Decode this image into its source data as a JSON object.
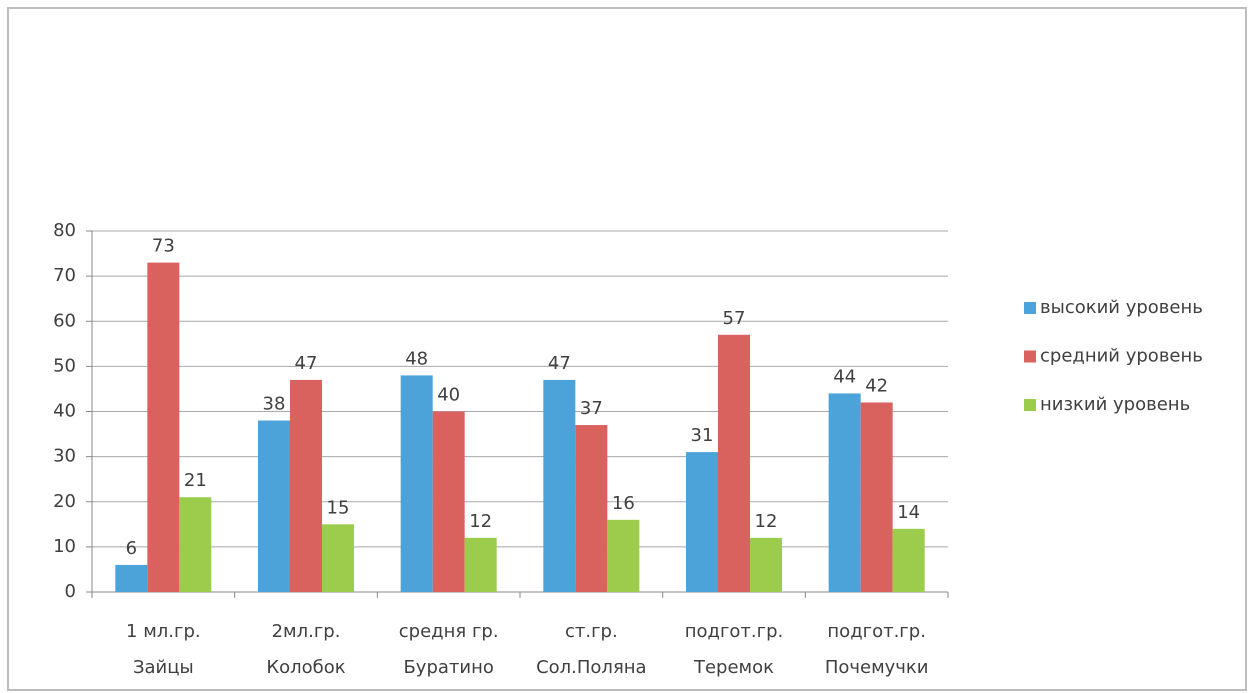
{
  "chart_data": {
    "type": "bar",
    "categories": [
      [
        "1 мл.гр.",
        "Зайцы"
      ],
      [
        "2мл.гр.",
        "Колобок"
      ],
      [
        "средня гр.",
        "Буратино"
      ],
      [
        "ст.гр.",
        "Сол.Поляна"
      ],
      [
        "подгот.гр.",
        "Теремок"
      ],
      [
        "подгот.гр.",
        "Почемучки"
      ]
    ],
    "series": [
      {
        "name": "высокий уровень",
        "color": "#4ba3d9",
        "values": [
          6,
          38,
          48,
          47,
          31,
          44
        ]
      },
      {
        "name": "средний уровень",
        "color": "#d9625f",
        "values": [
          73,
          47,
          40,
          37,
          57,
          42
        ]
      },
      {
        "name": "низкий уровень",
        "color": "#9bcc4b",
        "values": [
          21,
          15,
          12,
          16,
          12,
          14
        ]
      }
    ],
    "ylim": [
      0,
      80
    ],
    "yticks": [
      0,
      10,
      20,
      30,
      40,
      50,
      60,
      70,
      80
    ],
    "grid": true,
    "legend": "right"
  }
}
